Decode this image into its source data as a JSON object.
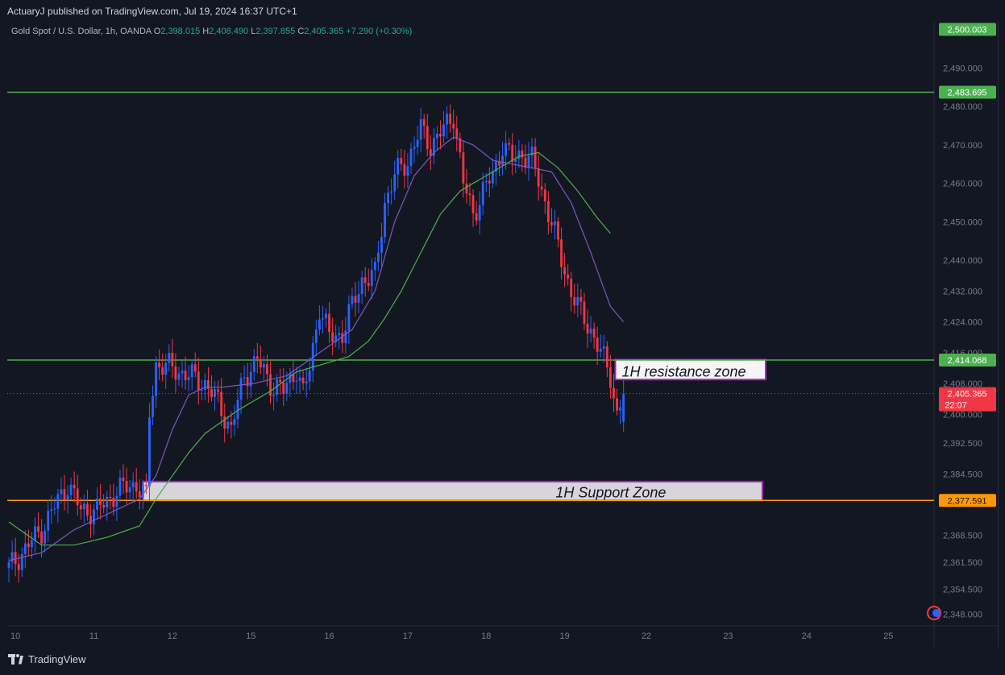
{
  "header": {
    "published_text": "ActuaryJ published on TradingView.com, Jul 19, 2024 16:37 UTC+1"
  },
  "legend": {
    "symbol": "Gold Spot / U.S. Dollar, 1h, OANDA",
    "o_label": "O",
    "o_value": "2,398.015",
    "h_label": "H",
    "h_value": "2,408.490",
    "l_label": "L",
    "l_value": "2,397.855",
    "c_label": "C",
    "c_value": "2,405.365",
    "change": "+7.290 (+0.30%)"
  },
  "footer": {
    "brand": "TradingView"
  },
  "colors": {
    "background": "#131722",
    "up": "#2962ff",
    "down": "#f23645",
    "ma_fast": "#7e57c2",
    "ma_slow": "#4caf50",
    "resistance_line": "#4caf50",
    "support_line": "#ff9800",
    "zone_border": "#9c27b0",
    "price_badge": "#f23645"
  },
  "chart_data": {
    "type": "candlestick",
    "title": "Gold Spot / U.S. Dollar, 1h, OANDA",
    "ylim": [
      2345,
      2502
    ],
    "y_ticks": [
      {
        "value": 2490,
        "label": "2,490.000"
      },
      {
        "value": 2480,
        "label": "2,480.000"
      },
      {
        "value": 2470,
        "label": "2,470.000"
      },
      {
        "value": 2460,
        "label": "2,460.000"
      },
      {
        "value": 2450,
        "label": "2,450.000"
      },
      {
        "value": 2440,
        "label": "2,440.000"
      },
      {
        "value": 2432,
        "label": "2,432.000"
      },
      {
        "value": 2424,
        "label": "2,424.000"
      },
      {
        "value": 2416,
        "label": "2,416.000"
      },
      {
        "value": 2408,
        "label": "2,408.000"
      },
      {
        "value": 2400,
        "label": "2,400.000"
      },
      {
        "value": 2392.5,
        "label": "2,392.500"
      },
      {
        "value": 2384.5,
        "label": "2,384.500"
      },
      {
        "value": 2368.5,
        "label": "2,368.500"
      },
      {
        "value": 2361.5,
        "label": "2,361.500"
      },
      {
        "value": 2354.5,
        "label": "2,354.500"
      },
      {
        "value": 2348,
        "label": "2,348.000"
      }
    ],
    "x_ticks": [
      {
        "label": "10",
        "index": 2
      },
      {
        "label": "11",
        "index": 26
      },
      {
        "label": "12",
        "index": 50
      },
      {
        "label": "15",
        "index": 74
      },
      {
        "label": "16",
        "index": 98
      },
      {
        "label": "17",
        "index": 122
      },
      {
        "label": "18",
        "index": 146
      },
      {
        "label": "19",
        "index": 170
      },
      {
        "label": "22",
        "index": 195
      },
      {
        "label": "23",
        "index": 220
      },
      {
        "label": "24",
        "index": 244
      },
      {
        "label": "25",
        "index": 269
      }
    ],
    "x_range": [
      -0.5,
      283
    ],
    "price_labels": [
      {
        "value": 2500.003,
        "label": "2,500.003",
        "color": "#4caf50"
      },
      {
        "value": 2483.695,
        "label": "2,483.695",
        "color": "#4caf50"
      },
      {
        "value": 2414.068,
        "label": "2,414.068",
        "color": "#4caf50"
      },
      {
        "value": 2377.591,
        "label": "2,377.591",
        "color": "#ff9800"
      }
    ],
    "current_price": {
      "value": 2405.365,
      "label": "2,405.365",
      "countdown": "22:07"
    },
    "horizontal_lines": [
      {
        "value": 2483.695,
        "color": "#4caf50"
      },
      {
        "value": 2414.068,
        "color": "#4caf50"
      },
      {
        "value": 2377.591,
        "color": "#ff9800"
      }
    ],
    "zones": [
      {
        "label": "1H resistance zone",
        "x_start": 185.5,
        "x_end": 231.5,
        "top": 2414.2,
        "bottom": 2409.0
      },
      {
        "label": "1H Support Zone",
        "x_start": 41,
        "x_end": 230.5,
        "top": 2382.5,
        "bottom": 2377.6
      }
    ],
    "candle_anchors": [
      [
        0,
        2360
      ],
      [
        5,
        2365
      ],
      [
        10,
        2370
      ],
      [
        18,
        2382
      ],
      [
        22,
        2375
      ],
      [
        27,
        2375
      ],
      [
        33,
        2380
      ],
      [
        39,
        2382
      ],
      [
        42,
        2378
      ],
      [
        43,
        2400
      ],
      [
        45,
        2413
      ],
      [
        50,
        2412
      ],
      [
        55,
        2410
      ],
      [
        60,
        2408
      ],
      [
        64,
        2403
      ],
      [
        68,
        2396
      ],
      [
        72,
        2410
      ],
      [
        76,
        2414
      ],
      [
        80,
        2408
      ],
      [
        84,
        2406
      ],
      [
        88,
        2412
      ],
      [
        90,
        2405
      ],
      [
        92,
        2412
      ],
      [
        95,
        2428
      ],
      [
        98,
        2420
      ],
      [
        102,
        2421
      ],
      [
        105,
        2428
      ],
      [
        108,
        2435
      ],
      [
        112,
        2436
      ],
      [
        115,
        2455
      ],
      [
        118,
        2462
      ],
      [
        122,
        2466
      ],
      [
        126,
        2474
      ],
      [
        129,
        2470
      ],
      [
        133,
        2474
      ],
      [
        136,
        2478
      ],
      [
        139,
        2460
      ],
      [
        142,
        2452
      ],
      [
        145,
        2458
      ],
      [
        148,
        2462
      ],
      [
        151,
        2470
      ],
      [
        154,
        2466
      ],
      [
        157,
        2468
      ],
      [
        160,
        2466
      ],
      [
        163,
        2458
      ],
      [
        166,
        2450
      ],
      [
        169,
        2440
      ],
      [
        172,
        2432
      ],
      [
        175,
        2426
      ],
      [
        178,
        2422
      ],
      [
        181,
        2416
      ],
      [
        184,
        2410
      ],
      [
        186,
        2400
      ],
      [
        188,
        2405.365
      ]
    ],
    "ma_fast_anchors": [
      [
        0,
        2362
      ],
      [
        10,
        2364
      ],
      [
        20,
        2370
      ],
      [
        30,
        2374
      ],
      [
        40,
        2378
      ],
      [
        45,
        2384
      ],
      [
        50,
        2396
      ],
      [
        55,
        2405
      ],
      [
        60,
        2407
      ],
      [
        65,
        2407
      ],
      [
        75,
        2408
      ],
      [
        85,
        2410
      ],
      [
        95,
        2416
      ],
      [
        105,
        2422
      ],
      [
        112,
        2432
      ],
      [
        118,
        2450
      ],
      [
        124,
        2462
      ],
      [
        130,
        2468
      ],
      [
        136,
        2472
      ],
      [
        142,
        2470
      ],
      [
        148,
        2466
      ],
      [
        154,
        2465
      ],
      [
        160,
        2464
      ],
      [
        166,
        2463
      ],
      [
        172,
        2455
      ],
      [
        178,
        2442
      ],
      [
        184,
        2428
      ],
      [
        188,
        2424
      ]
    ],
    "ma_slow_anchors": [
      [
        0,
        2372
      ],
      [
        10,
        2366
      ],
      [
        20,
        2366
      ],
      [
        30,
        2368
      ],
      [
        40,
        2371
      ],
      [
        45,
        2378
      ],
      [
        50,
        2384
      ],
      [
        55,
        2390
      ],
      [
        60,
        2395
      ],
      [
        65,
        2398
      ],
      [
        70,
        2401
      ],
      [
        80,
        2406
      ],
      [
        88,
        2411
      ],
      [
        96,
        2413
      ],
      [
        104,
        2415
      ],
      [
        110,
        2419
      ],
      [
        115,
        2425
      ],
      [
        120,
        2432
      ],
      [
        126,
        2442
      ],
      [
        132,
        2452
      ],
      [
        138,
        2458
      ],
      [
        144,
        2461
      ],
      [
        150,
        2464
      ],
      [
        156,
        2467
      ],
      [
        162,
        2468
      ],
      [
        168,
        2464
      ],
      [
        174,
        2458
      ],
      [
        180,
        2451
      ],
      [
        184,
        2447
      ]
    ]
  }
}
